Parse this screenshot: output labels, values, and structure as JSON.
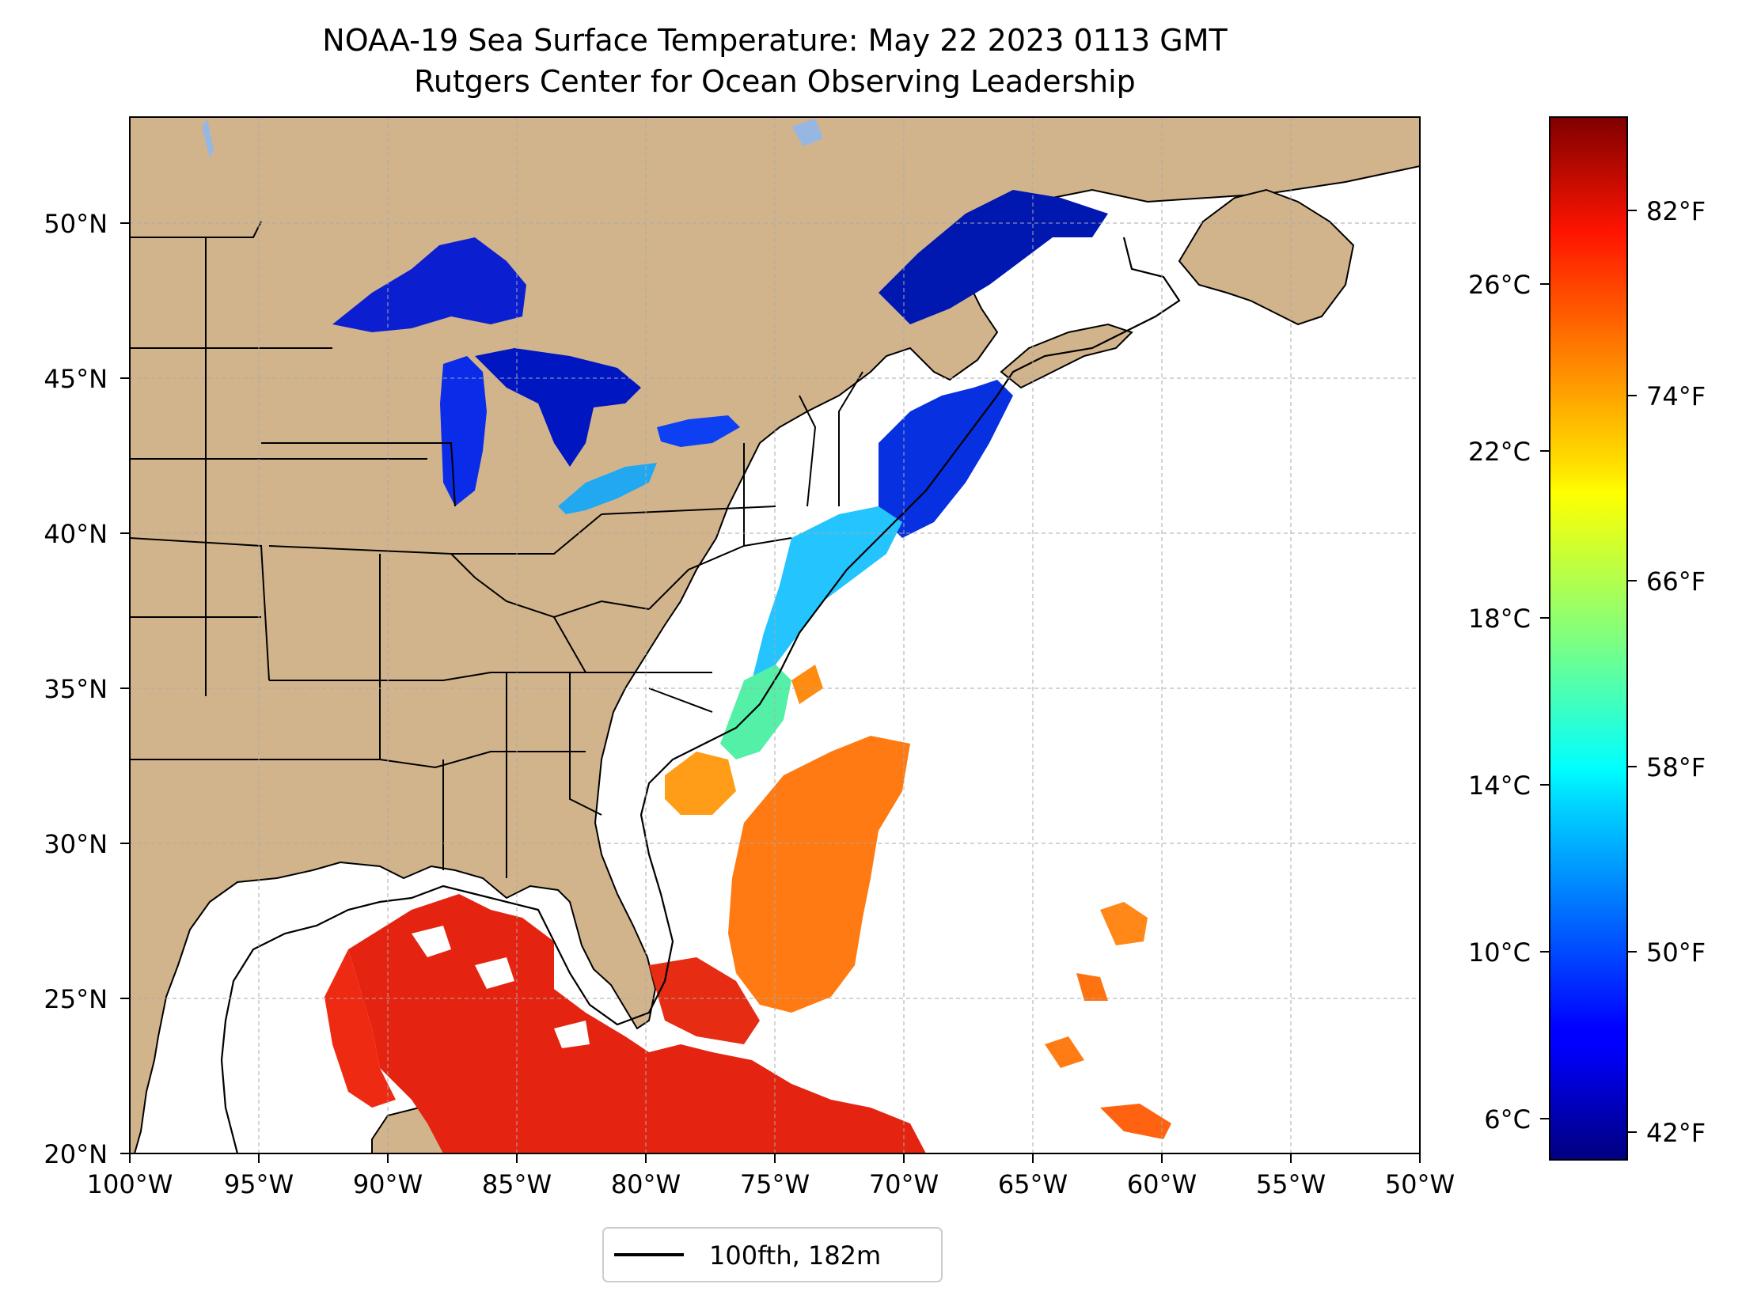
{
  "header": {
    "title_line1": "NOAA-19 Sea Surface Temperature: May 22 2023 0113 GMT",
    "title_line2": "Rutgers Center for Ocean Observing Leadership"
  },
  "map": {
    "extent": {
      "lon_min": -100,
      "lon_max": -50,
      "lat_min": 20,
      "lat_max": 52.7
    },
    "colors": {
      "land": "#d2b48c",
      "lakes": "#97b7e3",
      "ocean_nodata": "#ffffff",
      "border": "#000000",
      "grid": "#aaaaaa"
    },
    "lat_ticks": [
      "20°N",
      "25°N",
      "30°N",
      "35°N",
      "40°N",
      "45°N",
      "50°N"
    ],
    "lon_ticks": [
      "100°W",
      "95°W",
      "90°W",
      "85°W",
      "80°W",
      "75°W",
      "70°W",
      "65°W",
      "60°W",
      "55°W",
      "50°W"
    ],
    "gridlines": true,
    "legend": {
      "label": "100fth, 182m",
      "placement": "bottom-center"
    }
  },
  "colorbar": {
    "colormap": "jet",
    "celsius_ticks": [
      "6°C",
      "10°C",
      "14°C",
      "18°C",
      "22°C",
      "26°C"
    ],
    "fahrenheit_ticks": [
      "42°F",
      "50°F",
      "58°F",
      "66°F",
      "74°F",
      "82°F"
    ],
    "range_celsius": [
      5,
      30
    ]
  }
}
